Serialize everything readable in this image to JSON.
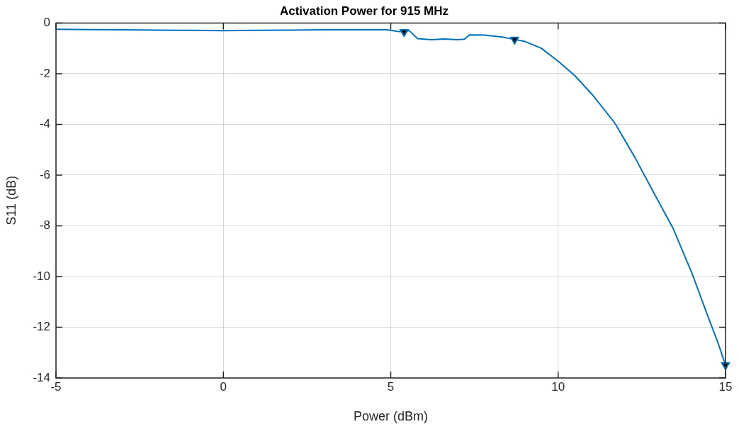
{
  "chart_data": {
    "type": "line",
    "title": "Activation Power for 915 MHz",
    "xlabel": "Power (dBm)",
    "ylabel": "S11 (dB)",
    "xlim": [
      -5,
      15
    ],
    "xticks": [
      -5,
      0,
      5,
      10,
      15
    ],
    "ylim": [
      -14,
      0
    ],
    "yticks": [
      -14,
      -12,
      -10,
      -8,
      -6,
      -4,
      -2,
      0
    ],
    "grid": true,
    "marker": "none",
    "line_style": "solid",
    "series": [
      {
        "color": "#0072bd",
        "x": [
          -5,
          -4,
          -3,
          -2,
          -1,
          0,
          1,
          2,
          3,
          4,
          4.9,
          5.2,
          5.4,
          5.55,
          5.8,
          6.2,
          6.6,
          7.0,
          7.2,
          7.35,
          7.8,
          8.3,
          8.7,
          8.99,
          9.5,
          10.01,
          10.5,
          11.03,
          11.7,
          12.3,
          12.87,
          13.43,
          14.0,
          14.42,
          14.77,
          15.0
        ],
        "values": [
          -0.25,
          -0.26,
          -0.27,
          -0.28,
          -0.29,
          -0.3,
          -0.29,
          -0.28,
          -0.27,
          -0.27,
          -0.27,
          -0.33,
          -0.35,
          -0.3,
          -0.62,
          -0.66,
          -0.63,
          -0.66,
          -0.64,
          -0.47,
          -0.48,
          -0.55,
          -0.65,
          -0.72,
          -1.0,
          -1.52,
          -2.08,
          -2.84,
          -3.96,
          -5.32,
          -6.73,
          -8.09,
          -9.88,
          -11.38,
          -12.6,
          -13.49
        ]
      },
      {
        "type": "scatter",
        "color": "#000000",
        "marker": "triangle",
        "x": [
          5.4,
          8.7,
          15.0
        ],
        "values": [
          -0.35,
          -0.65,
          -13.49
        ]
      }
    ]
  }
}
